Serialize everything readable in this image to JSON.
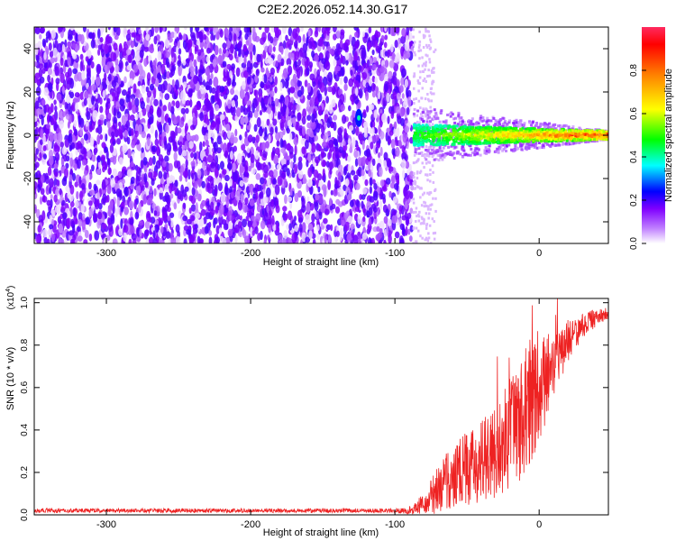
{
  "title": "C2E2.2026.052.14.30.G17",
  "chart_data": [
    {
      "type": "heatmap",
      "title": "C2E2.2026.052.14.30.G17",
      "xlabel": "Height of straight line (km)",
      "ylabel": "Frequency (Hz)",
      "xlim": [
        -350,
        48
      ],
      "ylim": [
        -50,
        50
      ],
      "xticks": [
        -300,
        -200,
        -100,
        0
      ],
      "yticks": [
        -40,
        -20,
        0,
        20,
        40
      ],
      "colorbar": {
        "label": "Normalized spectral amplitude",
        "range": [
          0,
          1
        ],
        "ticks": [
          0.0,
          0.2,
          0.4,
          0.6,
          0.8
        ],
        "colormap": [
          "#ffffff",
          "#8000ff",
          "#0000ff",
          "#00ffff",
          "#00ff00",
          "#ffff00",
          "#ff8000",
          "#ff0000"
        ]
      },
      "regions": [
        {
          "name": "noise",
          "x": [
            -350,
            -88
          ],
          "freq": [
            -50,
            50
          ],
          "amplitude": [
            0.0,
            0.15
          ]
        },
        {
          "name": "signal",
          "x": [
            -88,
            48
          ],
          "freq_center": 0,
          "freq_halfwidth_start": 5,
          "freq_halfwidth_end": 2,
          "amplitude": [
            0.3,
            1.0
          ]
        }
      ]
    },
    {
      "type": "line",
      "xlabel": "Height of straight line (km)",
      "ylabel": "SNR (10 * v/v)",
      "y_multiplier": "(x10^4)",
      "xlim": [
        -350,
        48
      ],
      "ylim": [
        0,
        1.02
      ],
      "xticks": [
        -300,
        -200,
        -100,
        0
      ],
      "yticks": [
        0.0,
        0.2,
        0.4,
        0.6,
        0.8,
        1.0
      ],
      "series": [
        {
          "color": "#ee2222",
          "x": [
            -350,
            -300,
            -250,
            -200,
            -150,
            -100,
            -90,
            -80,
            -70,
            -60,
            -50,
            -40,
            -30,
            -20,
            -10,
            0,
            10,
            20,
            30,
            40,
            48
          ],
          "y": [
            0.02,
            0.02,
            0.02,
            0.02,
            0.02,
            0.02,
            0.02,
            0.05,
            0.12,
            0.18,
            0.22,
            0.25,
            0.3,
            0.38,
            0.48,
            0.58,
            0.7,
            0.82,
            0.89,
            0.93,
            0.95
          ],
          "spread": [
            0.01,
            0.01,
            0.01,
            0.01,
            0.01,
            0.01,
            0.02,
            0.05,
            0.12,
            0.16,
            0.18,
            0.2,
            0.22,
            0.26,
            0.3,
            0.25,
            0.15,
            0.1,
            0.06,
            0.04,
            0.03
          ]
        }
      ]
    }
  ]
}
